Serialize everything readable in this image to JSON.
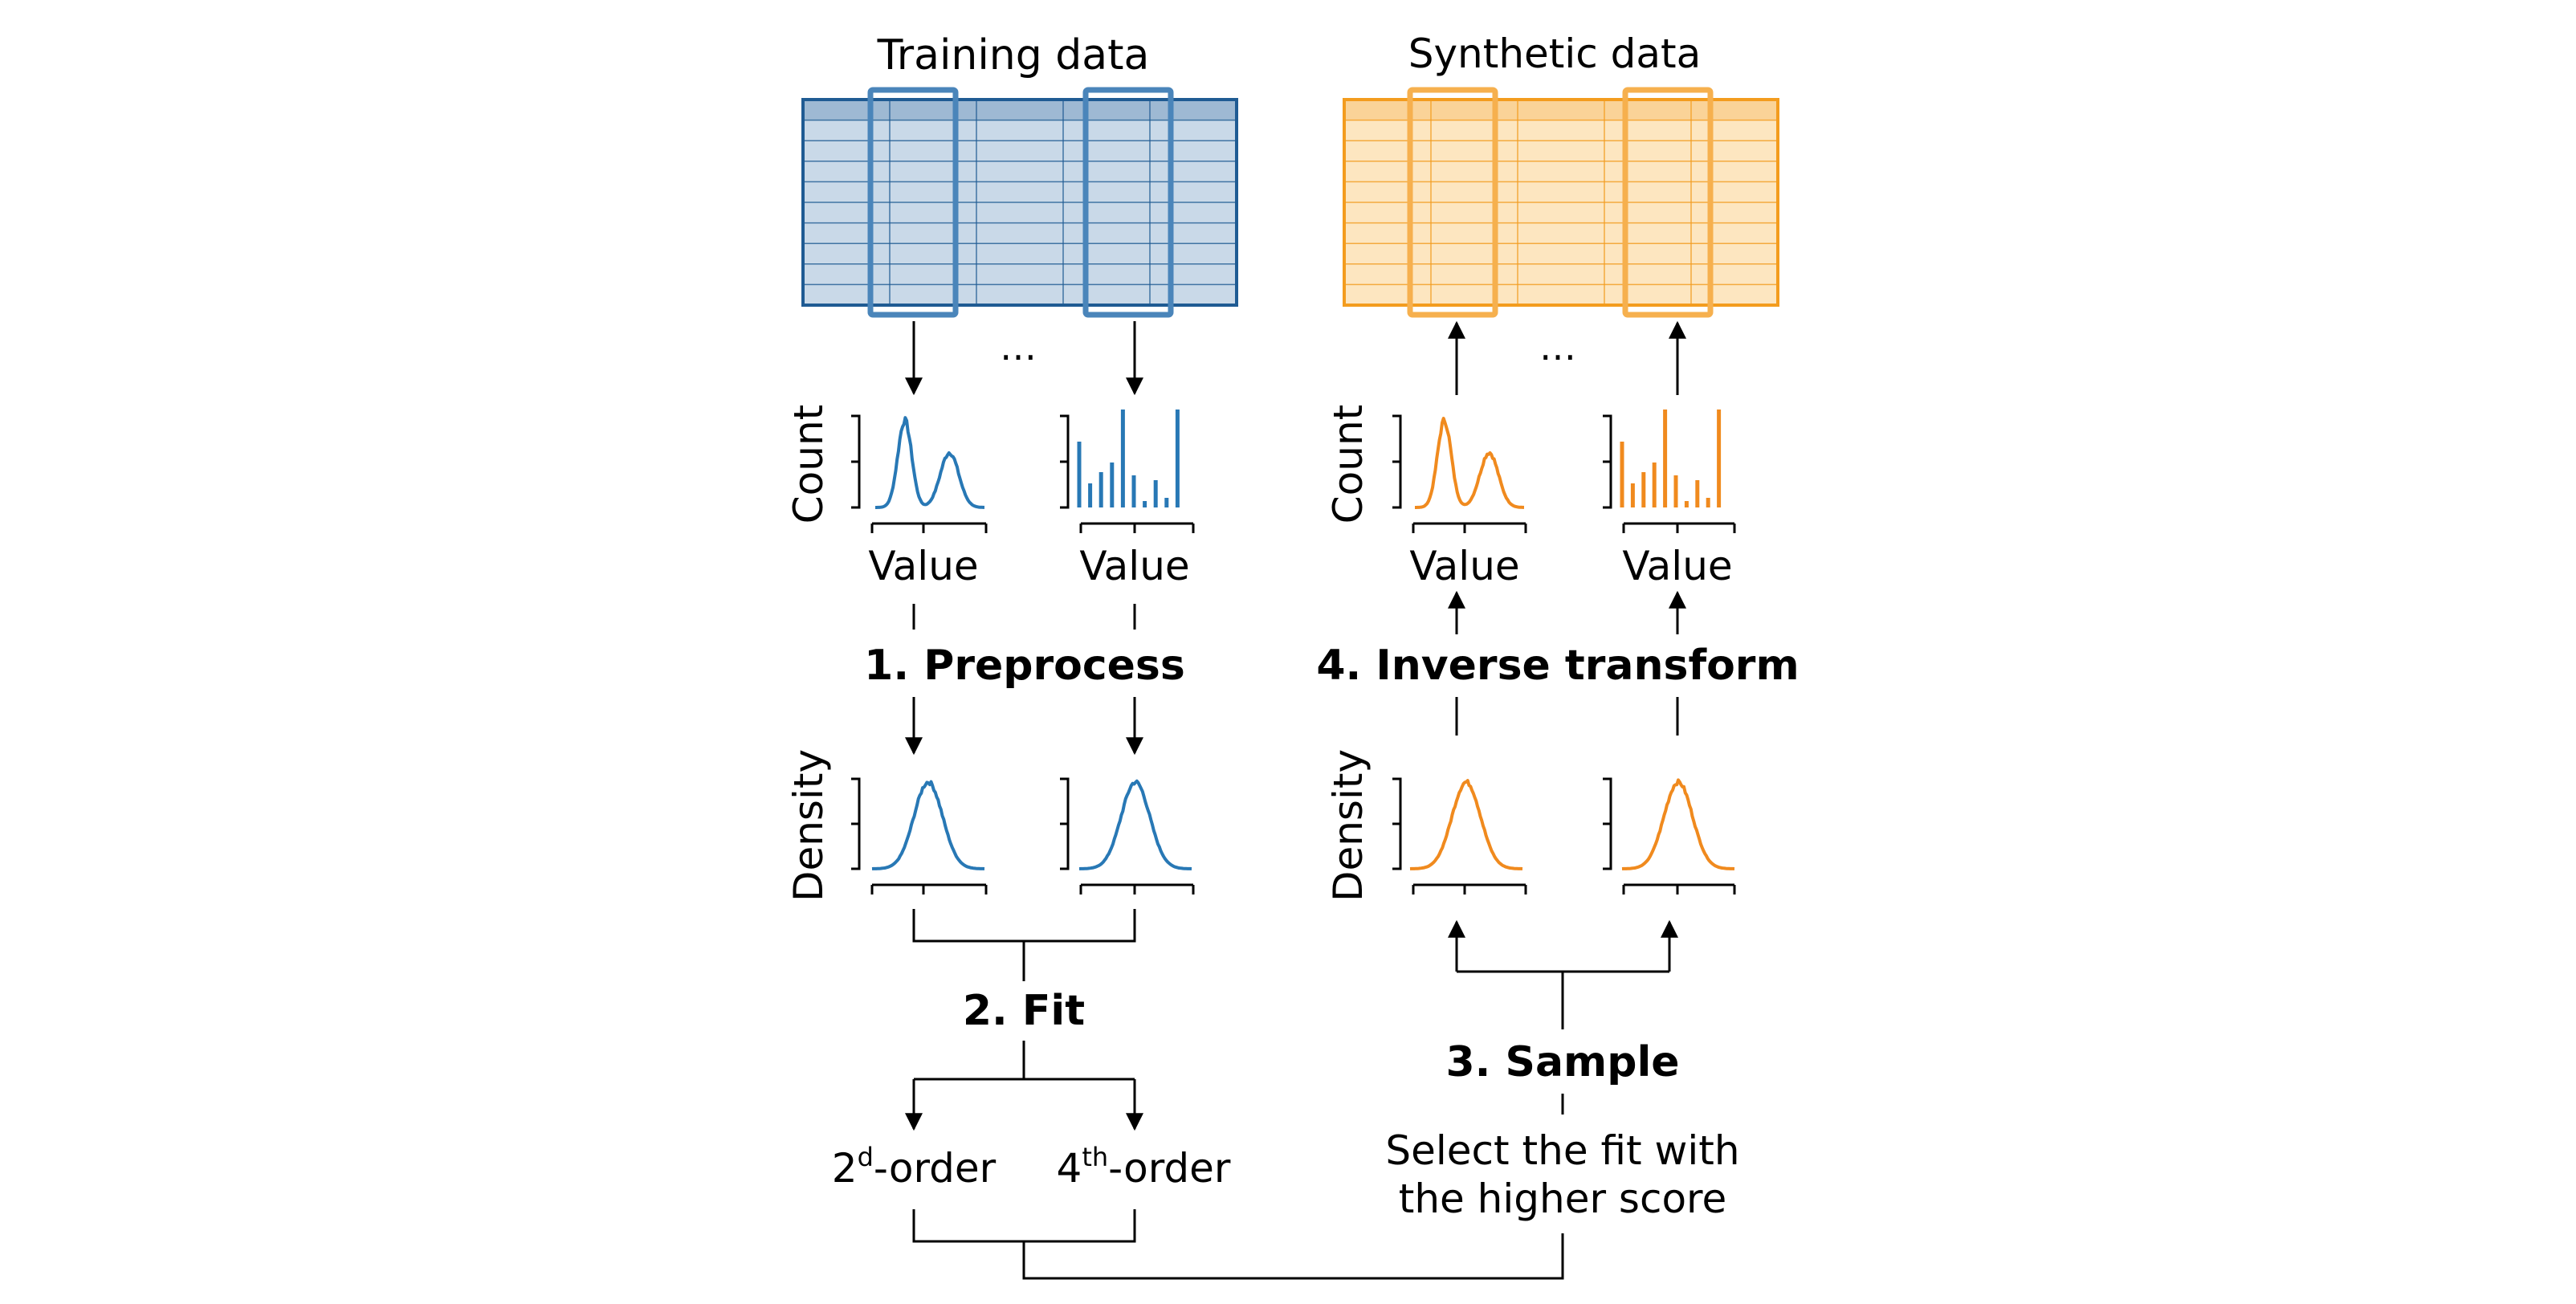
{
  "titles": {
    "training": "Training data",
    "synthetic": "Synthetic data"
  },
  "ellipsis": [
    "…",
    "…"
  ],
  "axis_labels": {
    "count": "Count",
    "density": "Density",
    "value": "Value"
  },
  "steps": {
    "preprocess": "1. Preprocess",
    "fit": "2. Fit",
    "sample": "3. Sample",
    "inverse": "4. Inverse transform"
  },
  "fit_options": {
    "second_base": "2",
    "second_sup": "d",
    "second_suffix": "-order",
    "fourth_base": "4",
    "fourth_sup": "th",
    "fourth_suffix": "-order"
  },
  "select_text": [
    "Select the fit with",
    "the higher score"
  ],
  "colors": {
    "training_stroke": "#1f5b93",
    "training_fill": "#c9d9e8",
    "training_col": "#4a85ba",
    "training_plot": "#2878b5",
    "synthetic_stroke": "#f39c1e",
    "synthetic_fill": "#fde6c0",
    "synthetic_col": "#f6b04e",
    "synthetic_plot": "#f08a1e"
  }
}
